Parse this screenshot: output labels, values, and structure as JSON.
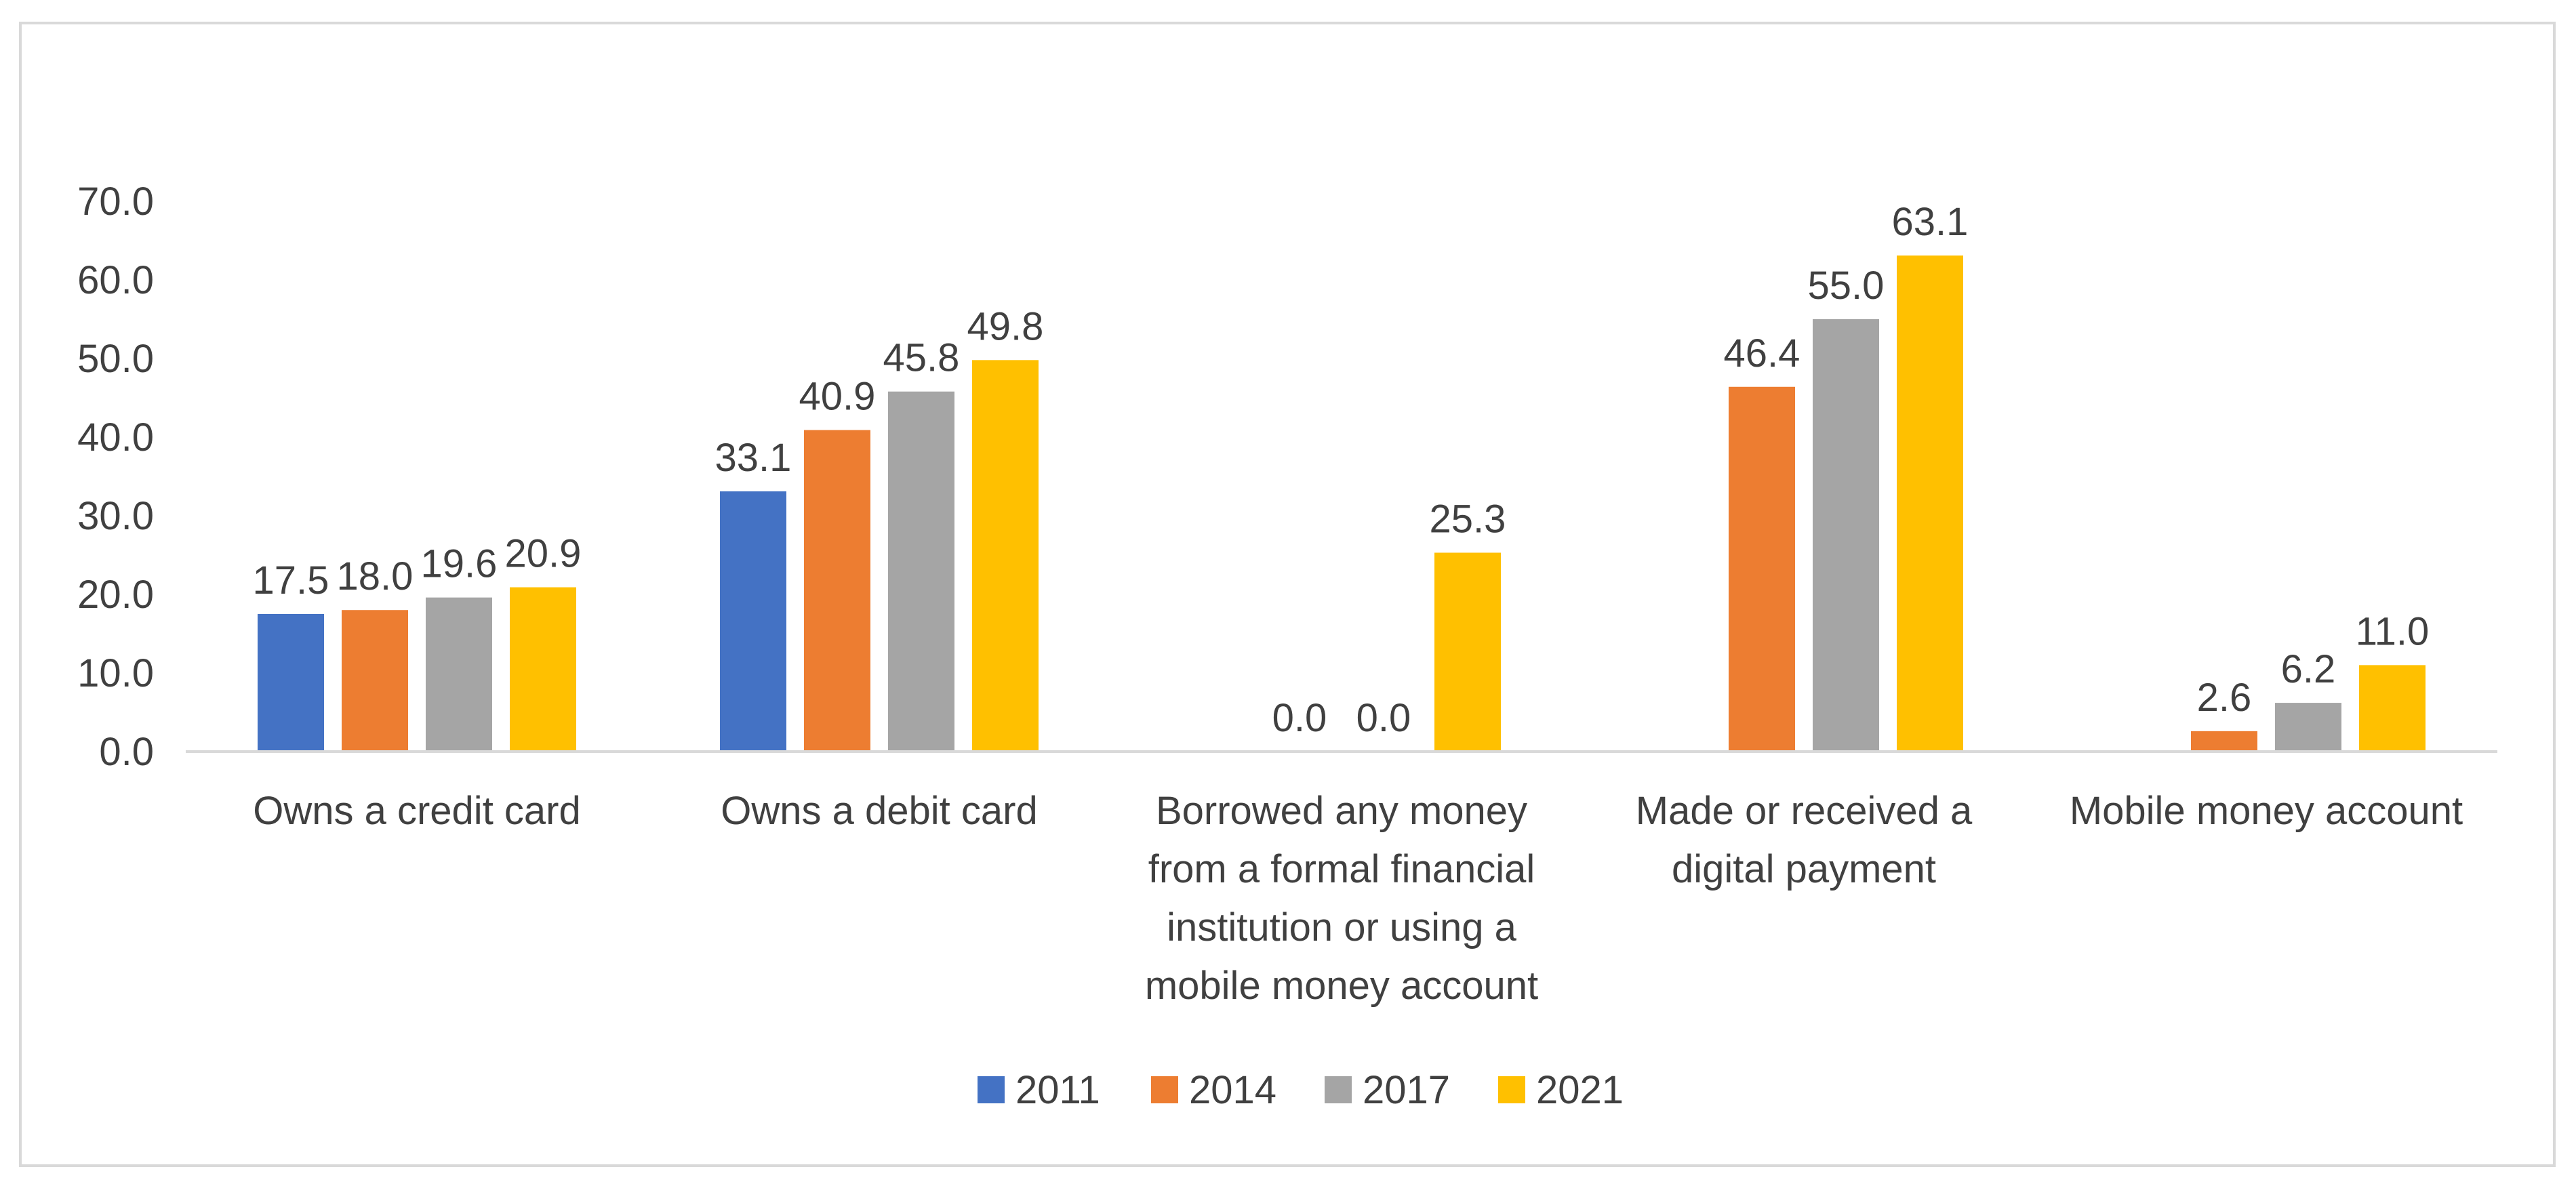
{
  "chart_data": {
    "type": "bar",
    "title": "",
    "xlabel": "",
    "ylabel": "",
    "ylim": [
      0,
      70
    ],
    "yticks": [
      "0.0",
      "10.0",
      "20.0",
      "30.0",
      "40.0",
      "50.0",
      "60.0",
      "70.0"
    ],
    "ytick_values": [
      0,
      10,
      20,
      30,
      40,
      50,
      60,
      70
    ],
    "grid": false,
    "legend_position": "bottom",
    "categories": [
      [
        "Owns a credit card"
      ],
      [
        "Owns a debit card"
      ],
      [
        "Borrowed any money",
        "from a formal financial",
        "institution or using a",
        "mobile money account"
      ],
      [
        "Made or received a",
        "digital payment"
      ],
      [
        "Mobile money account"
      ]
    ],
    "series": [
      {
        "name": "2011",
        "color": "#4472c4",
        "values": [
          17.5,
          33.1,
          null,
          null,
          null
        ],
        "labels": [
          "17.5",
          "33.1",
          null,
          null,
          null
        ]
      },
      {
        "name": "2014",
        "color": "#ed7d31",
        "values": [
          18.0,
          40.9,
          0.0,
          46.4,
          2.6
        ],
        "labels": [
          "18.0",
          "40.9",
          "0.0",
          "46.4",
          "2.6"
        ]
      },
      {
        "name": "2017",
        "color": "#a5a5a5",
        "values": [
          19.6,
          45.8,
          0.0,
          55.0,
          6.2
        ],
        "labels": [
          "19.6",
          "45.8",
          "0.0",
          "55.0",
          "6.2"
        ]
      },
      {
        "name": "2021",
        "color": "#ffc000",
        "values": [
          20.9,
          49.8,
          25.3,
          63.1,
          11.0
        ],
        "labels": [
          "20.9",
          "49.8",
          "25.3",
          "63.1",
          "11.0"
        ]
      }
    ]
  }
}
